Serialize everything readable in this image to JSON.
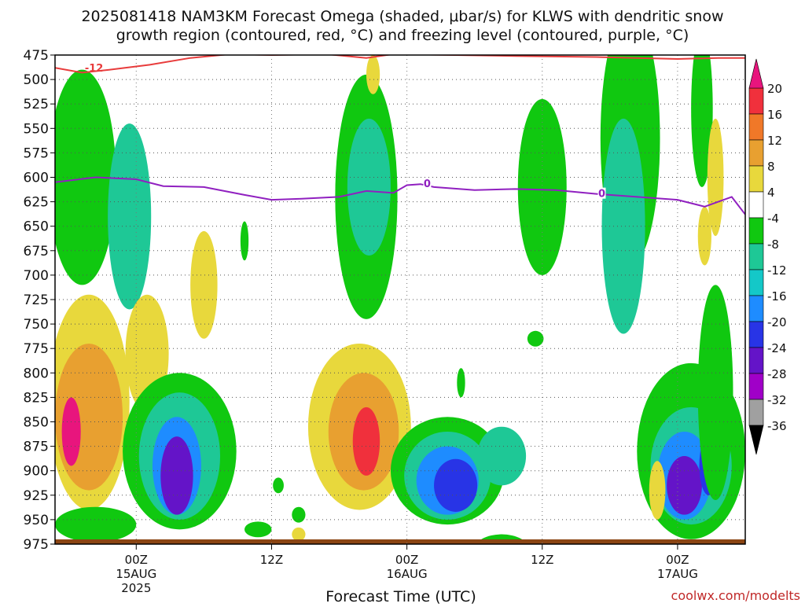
{
  "chart_data": {
    "type": "heatmap",
    "title_lines": [
      "2025081418 NAM3KM Forecast Omega (shaded, μbar/s) for KLWS with dendritic snow",
      "growth region (contoured, red, °C) and freezing level (contoured, purple, °C)"
    ],
    "xlabel": "Forecast Time (UTC)",
    "credit": "coolwx.com/modelts",
    "x_range_hours": [
      -6,
      45
    ],
    "x_ticks": [
      {
        "hour": 0,
        "lines": [
          "00Z",
          "15AUG",
          "2025"
        ]
      },
      {
        "hour": 10,
        "lines": [
          "12Z"
        ]
      },
      {
        "hour": 20,
        "lines": [
          "00Z",
          "16AUG"
        ]
      },
      {
        "hour": 30,
        "lines": [
          "12Z"
        ]
      },
      {
        "hour": 40,
        "lines": [
          "00Z",
          "17AUG"
        ]
      }
    ],
    "y_levels": [
      "475",
      "500",
      "525",
      "550",
      "575",
      "600",
      "625",
      "650",
      "675",
      "700",
      "725",
      "750",
      "775",
      "800",
      "825",
      "850",
      "875",
      "900",
      "925",
      "950",
      "975"
    ],
    "y_range_hpa": [
      475,
      975
    ],
    "grid": true,
    "colorbar": {
      "labels": [
        "20",
        "16",
        "12",
        "8",
        "4",
        "-4",
        "-8",
        "-12",
        "-16",
        "-20",
        "-24",
        "-28",
        "-32",
        "-36"
      ],
      "bins": [
        {
          "from": 20,
          "to": 24,
          "color": "#e8157d"
        },
        {
          "from": 16,
          "to": 20,
          "color": "#f0303c"
        },
        {
          "from": 12,
          "to": 16,
          "color": "#f07828"
        },
        {
          "from": 8,
          "to": 12,
          "color": "#e8a030"
        },
        {
          "from": 4,
          "to": 8,
          "color": "#e8d83c"
        },
        {
          "from": -4,
          "to": 4,
          "color": "#ffffff"
        },
        {
          "from": -8,
          "to": -4,
          "color": "#10c810"
        },
        {
          "from": -12,
          "to": -8,
          "color": "#1ec896"
        },
        {
          "from": -16,
          "to": -12,
          "color": "#14c8c8"
        },
        {
          "from": -20,
          "to": -16,
          "color": "#1e8cff"
        },
        {
          "from": -24,
          "to": -20,
          "color": "#2834e6"
        },
        {
          "from": -28,
          "to": -24,
          "color": "#6414c8"
        },
        {
          "from": -32,
          "to": -28,
          "color": "#a000c8"
        },
        {
          "from": -36,
          "to": -32,
          "color": "#a0a0a0"
        },
        {
          "from": -40,
          "to": -36,
          "color": "#000000"
        }
      ]
    },
    "freezing_level": {
      "label": "0",
      "color": "#9020c0",
      "points": [
        [
          -6,
          605
        ],
        [
          -3,
          600
        ],
        [
          0,
          602
        ],
        [
          2,
          609
        ],
        [
          5,
          610
        ],
        [
          8,
          618
        ],
        [
          10,
          623
        ],
        [
          12,
          622
        ],
        [
          15,
          620
        ],
        [
          17,
          614
        ],
        [
          19,
          616
        ],
        [
          20,
          608
        ],
        [
          21,
          607
        ],
        [
          22,
          610
        ],
        [
          25,
          613
        ],
        [
          28,
          612
        ],
        [
          31,
          613
        ],
        [
          34,
          617
        ],
        [
          37,
          620
        ],
        [
          40,
          623
        ],
        [
          42,
          630
        ],
        [
          44,
          620
        ],
        [
          45,
          638
        ]
      ]
    },
    "dgz_contour": {
      "label": "-12",
      "color": "#e83c3c",
      "points": [
        [
          -6,
          488
        ],
        [
          -4,
          493
        ],
        [
          -2,
          490
        ],
        [
          1,
          485
        ],
        [
          4,
          478
        ],
        [
          7,
          474
        ],
        [
          10,
          475
        ],
        [
          14,
          474
        ],
        [
          17,
          478
        ],
        [
          19,
          474
        ],
        [
          28,
          476
        ],
        [
          34,
          477
        ],
        [
          37,
          478
        ],
        [
          40,
          479
        ],
        [
          43,
          478
        ],
        [
          45,
          478
        ]
      ]
    },
    "omega_cells": [
      {
        "hour": -4,
        "hpa": 600,
        "rh": 2.5,
        "rp": 110,
        "value": -6
      },
      {
        "hour": -0.5,
        "hpa": 640,
        "rh": 1.6,
        "rp": 95,
        "value": -9
      },
      {
        "hour": -3.5,
        "hpa": 830,
        "rh": 3.0,
        "rp": 110,
        "value": 5
      },
      {
        "hour": -3.5,
        "hpa": 845,
        "rh": 2.5,
        "rp": 75,
        "value": 11
      },
      {
        "hour": -4.8,
        "hpa": 860,
        "rh": 0.7,
        "rp": 35,
        "value": 20
      },
      {
        "hour": 0.8,
        "hpa": 780,
        "rh": 1.6,
        "rp": 60,
        "value": 5
      },
      {
        "hour": 3.2,
        "hpa": 880,
        "rh": 4.2,
        "rp": 80,
        "value": -6
      },
      {
        "hour": 3.2,
        "hpa": 885,
        "rh": 3.0,
        "rp": 65,
        "value": -10
      },
      {
        "hour": 3.0,
        "hpa": 895,
        "rh": 1.8,
        "rp": 50,
        "value": -18
      },
      {
        "hour": 3.0,
        "hpa": 905,
        "rh": 1.2,
        "rp": 40,
        "value": -26
      },
      {
        "hour": -3,
        "hpa": 955,
        "rh": 3.0,
        "rp": 18,
        "value": -6
      },
      {
        "hour": 5.0,
        "hpa": 710,
        "rh": 1.0,
        "rp": 55,
        "value": 5
      },
      {
        "hour": 16.5,
        "hpa": 855,
        "rh": 3.8,
        "rp": 85,
        "value": 6
      },
      {
        "hour": 16.8,
        "hpa": 860,
        "rh": 2.6,
        "rp": 60,
        "value": 11
      },
      {
        "hour": 17.0,
        "hpa": 870,
        "rh": 1.0,
        "rp": 35,
        "value": 19
      },
      {
        "hour": 17.0,
        "hpa": 620,
        "rh": 2.3,
        "rp": 125,
        "value": -6
      },
      {
        "hour": 17.2,
        "hpa": 610,
        "rh": 1.6,
        "rp": 70,
        "value": -10
      },
      {
        "hour": 23,
        "hpa": 900,
        "rh": 4.2,
        "rp": 55,
        "value": -6
      },
      {
        "hour": 23,
        "hpa": 905,
        "rh": 3.2,
        "rp": 45,
        "value": -11
      },
      {
        "hour": 23,
        "hpa": 910,
        "rh": 2.3,
        "rp": 35,
        "value": -17
      },
      {
        "hour": 23.6,
        "hpa": 915,
        "rh": 1.6,
        "rp": 27,
        "value": -24
      },
      {
        "hour": 27.0,
        "hpa": 885,
        "rh": 1.8,
        "rp": 30,
        "value": -9
      },
      {
        "hour": 27,
        "hpa": 980,
        "rh": 2.0,
        "rp": 15,
        "value": -6
      },
      {
        "hour": 30.0,
        "hpa": 610,
        "rh": 1.8,
        "rp": 90,
        "value": -6
      },
      {
        "hour": 36.5,
        "hpa": 560,
        "rh": 2.2,
        "rp": 130,
        "value": -6
      },
      {
        "hour": 36.0,
        "hpa": 650,
        "rh": 1.6,
        "rp": 110,
        "value": -12
      },
      {
        "hour": 41.0,
        "hpa": 880,
        "rh": 4.0,
        "rp": 90,
        "value": -7
      },
      {
        "hour": 41.0,
        "hpa": 895,
        "rh": 3.0,
        "rp": 60,
        "value": -12
      },
      {
        "hour": 40.5,
        "hpa": 905,
        "rh": 2.0,
        "rp": 45,
        "value": -19
      },
      {
        "hour": 40.5,
        "hpa": 915,
        "rh": 1.3,
        "rp": 30,
        "value": -26
      },
      {
        "hour": 42.3,
        "hpa": 895,
        "rh": 0.7,
        "rp": 30,
        "value": -21
      },
      {
        "hour": 42.8,
        "hpa": 820,
        "rh": 1.3,
        "rp": 110,
        "value": -6
      },
      {
        "hour": 41.8,
        "hpa": 530,
        "rh": 0.8,
        "rp": 80,
        "value": -6
      },
      {
        "hour": 42.8,
        "hpa": 600,
        "rh": 0.6,
        "rp": 60,
        "value": 5
      },
      {
        "hour": 42.0,
        "hpa": 660,
        "rh": 0.5,
        "rp": 30,
        "value": 5
      },
      {
        "hour": 38.5,
        "hpa": 920,
        "rh": 0.6,
        "rp": 30,
        "value": 5
      },
      {
        "hour": 29.5,
        "hpa": 765,
        "rh": 0.6,
        "rp": 8,
        "value": -6
      },
      {
        "hour": 10.5,
        "hpa": 915,
        "rh": 0.4,
        "rp": 8,
        "value": -6
      },
      {
        "hour": 12.0,
        "hpa": 945,
        "rh": 0.5,
        "rp": 8,
        "value": -6
      },
      {
        "hour": 12.0,
        "hpa": 965,
        "rh": 0.5,
        "rp": 7,
        "value": 4.5
      },
      {
        "hour": 9.0,
        "hpa": 960,
        "rh": 1.0,
        "rp": 8,
        "value": -6
      },
      {
        "hour": 8.0,
        "hpa": 665,
        "rh": 0.3,
        "rp": 20,
        "value": -6
      },
      {
        "hour": 17.5,
        "hpa": 495,
        "rh": 0.5,
        "rp": 20,
        "value": 5
      },
      {
        "hour": 24.0,
        "hpa": 810,
        "rh": 0.3,
        "rp": 15,
        "value": -6
      }
    ]
  }
}
